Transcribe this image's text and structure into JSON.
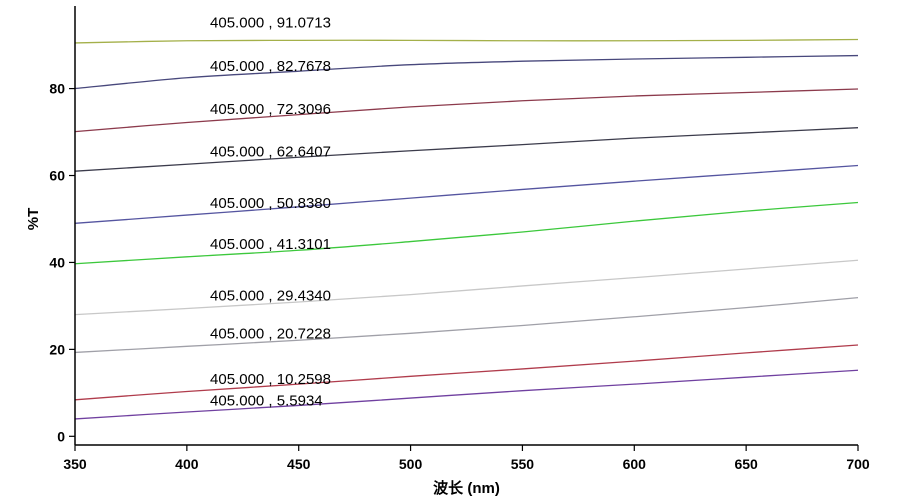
{
  "chart_data": {
    "type": "line",
    "xlabel": "波长 (nm)",
    "ylabel": "%T",
    "xlim": [
      350,
      700
    ],
    "ylim": [
      -2,
      99
    ],
    "xticks": [
      "350",
      "400",
      "450",
      "500",
      "550",
      "600",
      "650",
      "700"
    ],
    "yticks": [
      "0",
      "20",
      "40",
      "60",
      "80"
    ],
    "grid": false,
    "series": [
      {
        "color": "#a4b04a",
        "values": [
          90.5,
          91.0,
          91.1,
          91.1,
          91.0,
          91.0,
          91.1,
          91.3
        ],
        "annotation": "405.000 , 91.0713",
        "annotation_x": 405.0,
        "annotation_y": 95.2
      },
      {
        "color": "#48487c",
        "values": [
          80.0,
          82.5,
          84.0,
          85.5,
          86.3,
          86.8,
          87.2,
          87.6
        ],
        "annotation": "405.000 , 82.7678",
        "annotation_y": 85.2
      },
      {
        "color": "#8c3a4c",
        "values": [
          70.1,
          72.2,
          74.0,
          75.8,
          77.2,
          78.3,
          79.1,
          79.9
        ],
        "annotation": "405.000 , 72.3096",
        "annotation_y": 75.3
      },
      {
        "color": "#3c3c4c",
        "values": [
          61.0,
          62.6,
          64.2,
          65.7,
          67.1,
          68.6,
          69.8,
          71.0
        ],
        "annotation": "405.000 , 62.6407",
        "annotation_y": 65.5
      },
      {
        "color": "#5555a0",
        "values": [
          49.0,
          50.9,
          52.8,
          54.8,
          56.8,
          58.7,
          60.5,
          62.3
        ],
        "annotation": "405.000 , 50.8380",
        "annotation_y": 53.7
      },
      {
        "color": "#3cc83c",
        "values": [
          39.7,
          41.3,
          42.8,
          44.8,
          47.0,
          49.5,
          51.8,
          53.8
        ],
        "annotation": "405.000 , 41.3101",
        "annotation_y": 44.2
      },
      {
        "color": "#c8c8c8",
        "values": [
          28.0,
          29.4,
          30.9,
          32.6,
          34.6,
          36.5,
          38.5,
          40.5
        ],
        "annotation": "405.000 , 29.4340",
        "annotation_y": 32.4
      },
      {
        "color": "#a0a0a8",
        "values": [
          19.3,
          20.7,
          22.1,
          23.7,
          25.5,
          27.5,
          29.6,
          31.9
        ],
        "annotation": "405.000 , 20.7228",
        "annotation_y": 23.6
      },
      {
        "color": "#b03c4c",
        "values": [
          8.4,
          10.3,
          12.0,
          13.8,
          15.5,
          17.3,
          19.2,
          21.0
        ],
        "annotation": "405.000 , 10.2598",
        "annotation_y": 13.2
      },
      {
        "color": "#7040a0",
        "values": [
          4.0,
          5.6,
          7.1,
          8.8,
          10.5,
          12.0,
          13.6,
          15.2
        ],
        "annotation": "405.000 , 5.5934",
        "annotation_y": 8.2
      }
    ]
  }
}
